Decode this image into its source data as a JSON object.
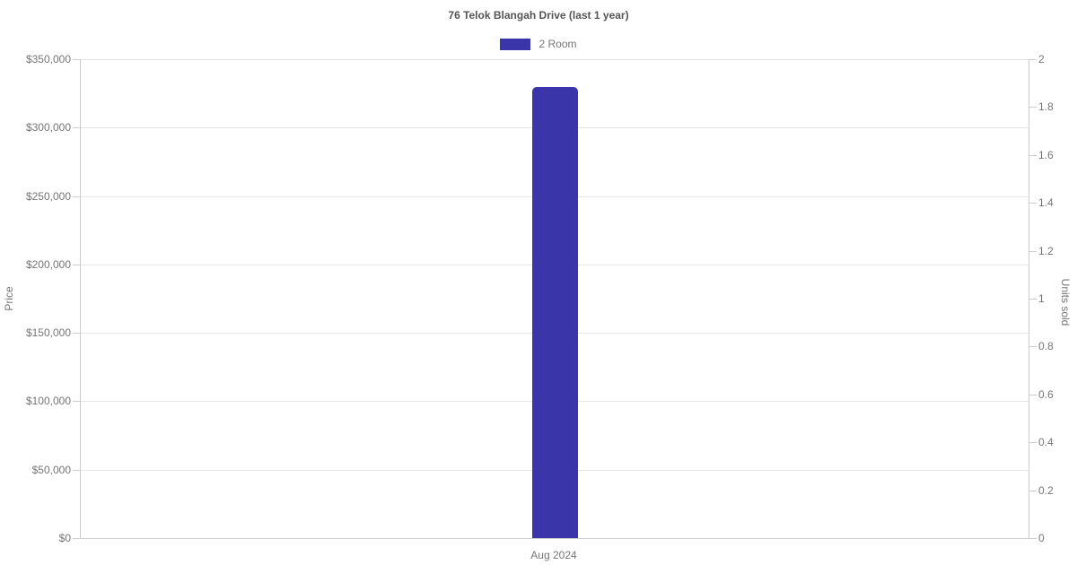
{
  "title": "76 Telok Blangah Drive (last 1 year)",
  "legend": {
    "items": [
      {
        "label": "2 Room",
        "color": "#3A35A8"
      }
    ]
  },
  "colors": {
    "bar": "#3A35A8",
    "title_text": "#555555",
    "tick_text": "#757575",
    "axis_line": "#cccccc",
    "gridline": "#e6e6e6"
  },
  "chart_data": {
    "type": "bar",
    "title": "76 Telok Blangah Drive (last 1 year)",
    "categories": [
      "Aug 2024"
    ],
    "series": [
      {
        "name": "2 Room",
        "axis": "left",
        "color": "#3A35A8",
        "values": [
          330000
        ]
      }
    ],
    "axes": {
      "left": {
        "label": "Price",
        "min": 0,
        "max": 350000,
        "tick_step": 50000,
        "tick_labels": [
          "$0",
          "$50,000",
          "$100,000",
          "$150,000",
          "$200,000",
          "$250,000",
          "$300,000",
          "$350,000"
        ]
      },
      "right": {
        "label": "Units sold",
        "min": 0,
        "max": 2,
        "tick_step": 0.2,
        "tick_labels": [
          "0",
          "0.2",
          "0.4",
          "0.6",
          "0.8",
          "1",
          "1.2",
          "1.4",
          "1.6",
          "1.8",
          "2"
        ]
      },
      "x": {
        "tick_labels": [
          "Aug 2024"
        ]
      }
    },
    "grid": "horizontal-from-left-axis",
    "legend_position": "top-center"
  }
}
